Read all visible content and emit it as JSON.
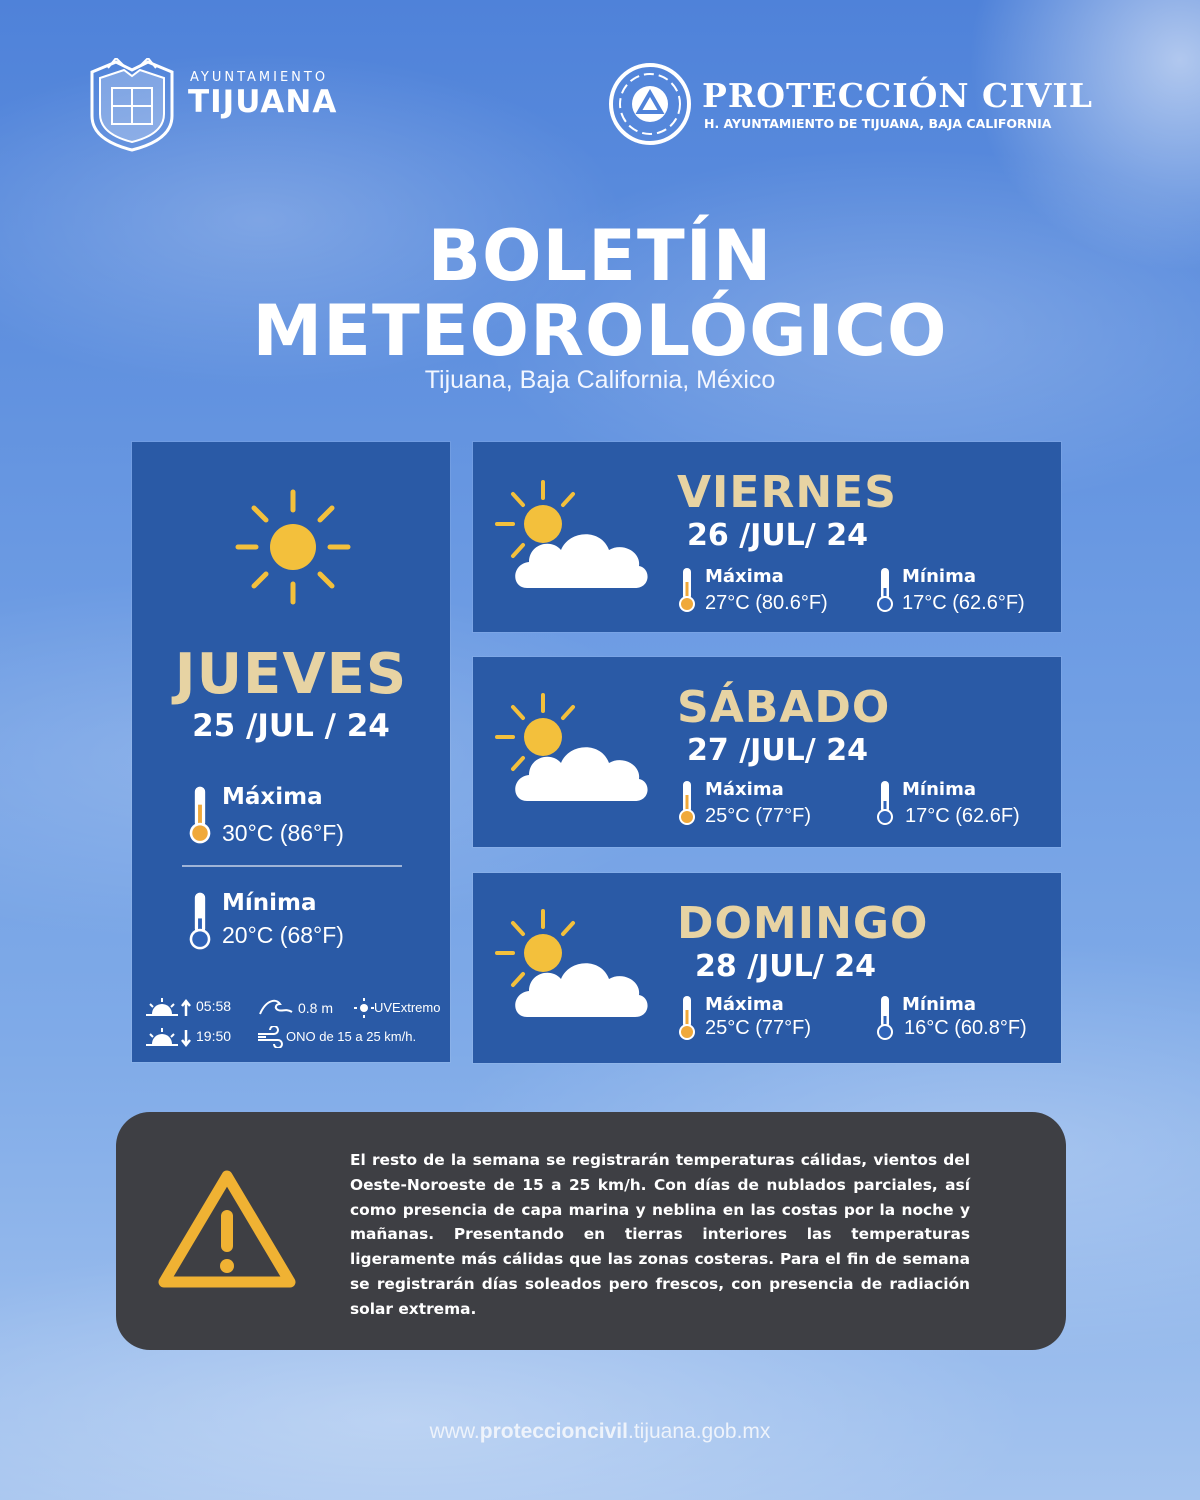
{
  "header": {
    "tijuana_small": "AYUNTAMIENTO",
    "tijuana_big": "TIJUANA",
    "pc_big": "PROTECCIÓN CIVIL",
    "pc_small": "H. AYUNTAMIENTO DE TIJUANA, BAJA CALIFORNIA"
  },
  "title": {
    "line1": "BOLETÍN",
    "line2": "METEOROLÓGICO",
    "location": "Tijuana, Baja California, México"
  },
  "today": {
    "day": "JUEVES",
    "date": "25 /JUL / 24",
    "max_label": "Máxima",
    "max_value": "30°C (86°F)",
    "min_label": "Mínima",
    "min_value": "20°C (68°F)",
    "sunrise": "05:58",
    "sunset": "19:50",
    "waves": "0.8 m",
    "uv": "UVExtremo",
    "wind": "ONO de 15 a 25 km/h.",
    "icon": "sun-icon"
  },
  "forecast": [
    {
      "day": "VIERNES",
      "date": "26 /JUL/ 24",
      "max_label": "Máxima",
      "max_value": "27°C (80.6°F)",
      "min_label": "Mínima",
      "min_value": "17°C (62.6°F)",
      "icon": "partly-cloudy-icon"
    },
    {
      "day": "SÁBADO",
      "date": "27 /JUL/ 24",
      "max_label": "Máxima",
      "max_value": "25°C (77°F)",
      "min_label": "Mínima",
      "min_value": "17°C (62.6F)",
      "icon": "partly-cloudy-icon"
    },
    {
      "day": "DOMINGO",
      "date": "28 /JUL/ 24",
      "max_label": "Máxima",
      "max_value": "25°C (77°F)",
      "min_label": "Mínima",
      "min_value": "16°C (60.8°F)",
      "icon": "partly-cloudy-icon"
    }
  ],
  "notice": {
    "icon": "warning-icon",
    "text": "El resto de la semana se registrarán temperaturas cálidas, vientos del Oeste-Noroeste de 15 a 25 km/h. Con días de nublados parciales, así como presencia de capa marina y neblina en las costas por la noche y mañanas. Presentando en tierras interiores las temperaturas ligeramente más cálidas que las zonas costeras. Para el fin de semana se registrarán días soleados pero frescos, con presencia de radiación solar extrema."
  },
  "footer": {
    "prefix": "www.",
    "bold": "proteccioncivil",
    "suffix": ".tijuana.gob.mx"
  },
  "colors": {
    "card": "#2a5aa6",
    "gold_text": "#e7d3a3",
    "sun": "#f3c03c",
    "warning": "#f0b233",
    "notice_bg": "#3e3f44"
  }
}
